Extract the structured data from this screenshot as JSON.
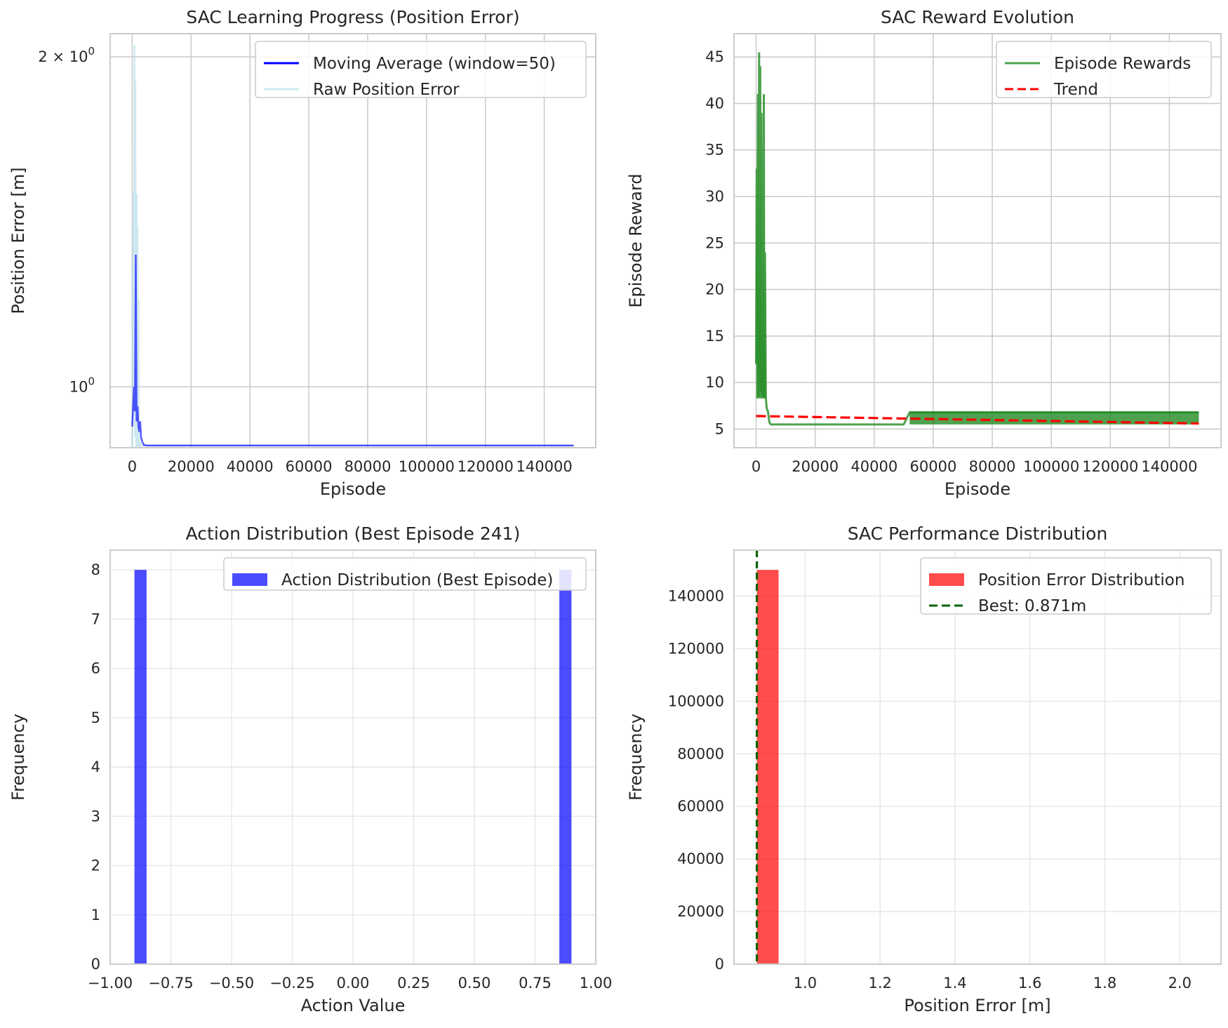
{
  "colors": {
    "moving_average": "#0000ff",
    "raw_error": "#add8e6",
    "episode_rewards": "#228b22",
    "trend": "#ff0000",
    "action_hist": "#0000ff",
    "error_hist": "#ff0000",
    "best_line": "#006400"
  },
  "chart_data": [
    {
      "type": "line",
      "title": "SAC Learning Progress (Position Error)",
      "xlabel": "Episode",
      "ylabel": "Position Error [m]",
      "yscale": "log",
      "xlim": [
        -7500,
        157500
      ],
      "ylim": [
        0.88,
        2.1
      ],
      "xticks": [
        0,
        20000,
        40000,
        60000,
        80000,
        100000,
        120000,
        140000
      ],
      "xtick_labels": [
        "0",
        "20000",
        "40000",
        "60000",
        "80000",
        "100000",
        "120000",
        "140000"
      ],
      "ytick_labels": [
        "2 × 10",
        "10"
      ],
      "ytick_exponents": [
        "0",
        "0"
      ],
      "ytick_values": [
        2,
        1
      ],
      "grid": true,
      "legend_position": "upper right",
      "series": [
        {
          "name": "Moving Average (window=50)",
          "x": [
            0,
            300,
            600,
            900,
            1200,
            1500,
            1800,
            2100,
            2400,
            2700,
            3000,
            3500,
            4000,
            5000,
            8000,
            20000,
            60000,
            100000,
            150000
          ],
          "y": [
            0.92,
            0.96,
            1.0,
            0.95,
            1.32,
            0.93,
            0.96,
            0.92,
            0.91,
            0.93,
            0.9,
            0.89,
            0.885,
            0.884,
            0.884,
            0.884,
            0.884,
            0.884,
            0.884
          ]
        },
        {
          "name": "Raw Position Error",
          "x": [
            0,
            150,
            300,
            450,
            600,
            750,
            900,
            1050,
            1200,
            1350,
            1500,
            1650,
            1800,
            1950,
            2100,
            2250,
            2400,
            2550,
            2700,
            2850,
            3000,
            3500,
            4000,
            150000
          ],
          "y": [
            0.88,
            1.3,
            0.95,
            1.5,
            1.05,
            2.05,
            0.9,
            1.9,
            1.1,
            0.88,
            1.5,
            0.9,
            1.4,
            0.88,
            1.2,
            0.88,
            0.9,
            0.88,
            0.89,
            0.88,
            0.885,
            0.884,
            0.884,
            0.884
          ]
        }
      ]
    },
    {
      "type": "line",
      "title": "SAC Reward Evolution",
      "xlabel": "Episode",
      "ylabel": "Episode Reward",
      "xlim": [
        -7500,
        157500
      ],
      "ylim": [
        3,
        47.5
      ],
      "xticks": [
        0,
        20000,
        40000,
        60000,
        80000,
        100000,
        120000,
        140000
      ],
      "xtick_labels": [
        "0",
        "20000",
        "40000",
        "60000",
        "80000",
        "100000",
        "120000",
        "140000"
      ],
      "yticks": [
        5,
        10,
        15,
        20,
        25,
        30,
        35,
        40,
        45
      ],
      "grid": true,
      "legend_position": "upper right",
      "series": [
        {
          "name": "Episode Rewards",
          "x": [
            0,
            200,
            400,
            600,
            800,
            1000,
            1200,
            1400,
            1600,
            1800,
            2000,
            2200,
            2400,
            2600,
            2800,
            3000,
            3300,
            3600,
            4000,
            4500,
            5000,
            12000,
            20000,
            40000,
            50000,
            52000,
            60000,
            80000,
            100000,
            120000,
            140000,
            150000
          ],
          "y": [
            12,
            33,
            20,
            41,
            8.5,
            45.5,
            14,
            44,
            9,
            39,
            8.5,
            32,
            10,
            41,
            8.3,
            24,
            8.3,
            7.2,
            6.9,
            5.7,
            5.5,
            5.5,
            5.5,
            5.5,
            5.5,
            6.8,
            6.8,
            6.8,
            6.8,
            6.8,
            6.8,
            6.8
          ]
        },
        {
          "name": "Trend",
          "x": [
            0,
            150000
          ],
          "y": [
            6.4,
            5.6
          ]
        }
      ]
    },
    {
      "type": "bar",
      "title": "Action Distribution (Best Episode 241)",
      "xlabel": "Action Value",
      "ylabel": "Frequency",
      "xlim": [
        -1.0,
        1.0
      ],
      "ylim": [
        0,
        8.4
      ],
      "xticks": [
        -1.0,
        -0.75,
        -0.5,
        -0.25,
        0.0,
        0.25,
        0.5,
        0.75,
        1.0
      ],
      "xtick_labels": [
        "−1.00",
        "−0.75",
        "−0.50",
        "−0.25",
        "0.00",
        "0.25",
        "0.50",
        "0.75",
        "1.00"
      ],
      "yticks": [
        0,
        1,
        2,
        3,
        4,
        5,
        6,
        7,
        8
      ],
      "grid": true,
      "legend_position": "upper right",
      "series": [
        {
          "name": "Action Distribution (Best Episode)",
          "bins": [
            [
              -0.9,
              -0.85
            ],
            [
              0.85,
              0.9
            ]
          ],
          "values": [
            8,
            8
          ]
        }
      ]
    },
    {
      "type": "bar",
      "title": "SAC Performance Distribution",
      "xlabel": "Position Error [m]",
      "ylabel": "Frequency",
      "xlim": [
        0.81,
        2.11
      ],
      "ylim": [
        0,
        157500
      ],
      "xticks": [
        1.0,
        1.2,
        1.4,
        1.6,
        1.8,
        2.0
      ],
      "xtick_labels": [
        "1.0",
        "1.2",
        "1.4",
        "1.6",
        "1.8",
        "2.0"
      ],
      "yticks": [
        0,
        20000,
        40000,
        60000,
        80000,
        100000,
        120000,
        140000
      ],
      "grid": true,
      "legend_position": "upper right",
      "series": [
        {
          "name": "Position Error Distribution",
          "bins": [
            [
              0.871,
              0.929
            ]
          ],
          "values": [
            150000
          ]
        },
        {
          "name": "Best: 0.871m",
          "vline": 0.871
        }
      ]
    }
  ]
}
